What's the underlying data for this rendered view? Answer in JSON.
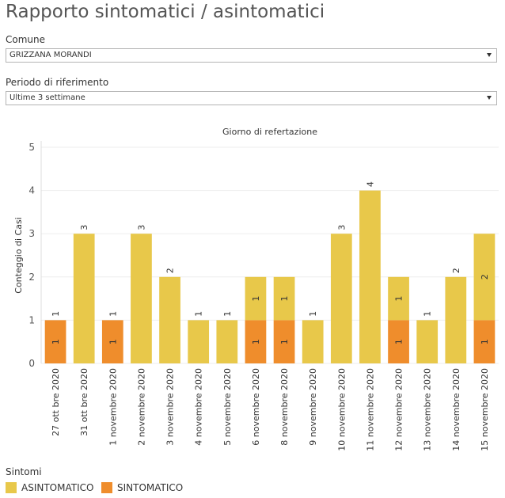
{
  "page": {
    "title": "Rapporto sintomatici / asintomatici"
  },
  "filters": {
    "comune_label": "Comune",
    "comune_value": "GRIZZANA MORANDI",
    "periodo_label": "Periodo di riferimento",
    "periodo_value": "Ultime 3 settimane"
  },
  "colors": {
    "asintomatico": "#e8c84a",
    "sintomatico": "#ef8d2c",
    "gridline": "#eeeeee",
    "axis_text": "#555555"
  },
  "chart_data": {
    "type": "bar",
    "stacked": true,
    "title": "Giorno di refertazione",
    "xlabel": "",
    "ylabel": "Conteggio di Casi",
    "ylim": [
      0,
      5
    ],
    "yticks": [
      0,
      1,
      2,
      3,
      4,
      5
    ],
    "grid": true,
    "categories": [
      "27 ott bre 2020",
      "31 ott bre 2020",
      "1 novembre 2020",
      "2 novembre 2020",
      "3 novembre 2020",
      "4 novembre 2020",
      "5 novembre 2020",
      "6 novembre 2020",
      "8 novembre 2020",
      "9 novembre 2020",
      "10 novembre 2020",
      "11 novembre 2020",
      "12 novembre 2020",
      "13 novembre 2020",
      "14 novembre 2020",
      "15 novembre 2020"
    ],
    "series": [
      {
        "name": "SINTOMATICO",
        "values": [
          1,
          0,
          1,
          0,
          0,
          0,
          0,
          1,
          1,
          0,
          0,
          0,
          1,
          0,
          0,
          1
        ]
      },
      {
        "name": "ASINTOMATICO",
        "values": [
          0,
          3,
          0,
          3,
          2,
          1,
          1,
          1,
          1,
          1,
          3,
          4,
          1,
          1,
          2,
          2
        ]
      }
    ],
    "legend_title": "Sintomi",
    "legend": [
      "ASINTOMATICO",
      "SINTOMATICO"
    ],
    "legend_position": "bottom-left"
  }
}
